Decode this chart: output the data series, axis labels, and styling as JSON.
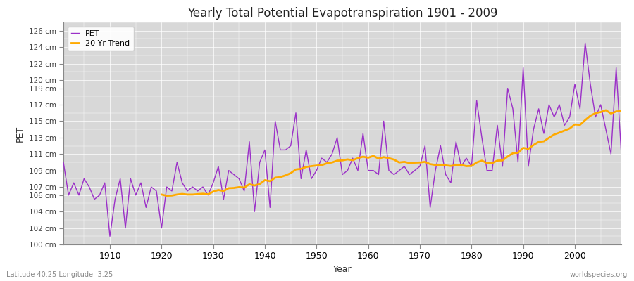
{
  "title": "Yearly Total Potential Evapotranspiration 1901 - 2009",
  "xlabel": "Year",
  "ylabel": "PET",
  "footnote_left": "Latitude 40.25 Longitude -3.25",
  "footnote_right": "worldspecies.org",
  "pet_color": "#9b30c8",
  "trend_color": "#ffaa00",
  "figure_bg_color": "#ffffff",
  "plot_bg_color": "#d8d8d8",
  "ylim": [
    100,
    127
  ],
  "xlim": [
    1901,
    2009
  ],
  "ytick_labels": [
    "100 cm",
    "102 cm",
    "104 cm",
    "106 cm",
    "107 cm",
    "109 cm",
    "111 cm",
    "113 cm",
    "115 cm",
    "117 cm",
    "119 cm",
    "120 cm",
    "122 cm",
    "124 cm",
    "126 cm"
  ],
  "ytick_values": [
    100,
    102,
    104,
    106,
    107,
    109,
    111,
    113,
    115,
    117,
    119,
    120,
    122,
    124,
    126
  ],
  "xtick_values": [
    1910,
    1920,
    1930,
    1940,
    1950,
    1960,
    1970,
    1980,
    1990,
    2000
  ],
  "years": [
    1901,
    1902,
    1903,
    1904,
    1905,
    1906,
    1907,
    1908,
    1909,
    1910,
    1911,
    1912,
    1913,
    1914,
    1915,
    1916,
    1917,
    1918,
    1919,
    1920,
    1921,
    1922,
    1923,
    1924,
    1925,
    1926,
    1927,
    1928,
    1929,
    1930,
    1931,
    1932,
    1933,
    1934,
    1935,
    1936,
    1937,
    1938,
    1939,
    1940,
    1941,
    1942,
    1943,
    1944,
    1945,
    1946,
    1947,
    1948,
    1949,
    1950,
    1951,
    1952,
    1953,
    1954,
    1955,
    1956,
    1957,
    1958,
    1959,
    1960,
    1961,
    1962,
    1963,
    1964,
    1965,
    1966,
    1967,
    1968,
    1969,
    1970,
    1971,
    1972,
    1973,
    1974,
    1975,
    1976,
    1977,
    1978,
    1979,
    1980,
    1981,
    1982,
    1983,
    1984,
    1985,
    1986,
    1987,
    1988,
    1989,
    1990,
    1991,
    1992,
    1993,
    1994,
    1995,
    1996,
    1997,
    1998,
    1999,
    2000,
    2001,
    2002,
    2003,
    2004,
    2005,
    2006,
    2007,
    2008,
    2009
  ],
  "pet_values": [
    110.0,
    106.0,
    107.5,
    106.0,
    108.0,
    107.0,
    105.5,
    106.0,
    107.5,
    101.0,
    105.5,
    108.0,
    102.0,
    108.0,
    106.0,
    107.5,
    104.5,
    107.0,
    106.5,
    102.0,
    107.0,
    106.5,
    110.0,
    107.5,
    106.5,
    107.0,
    106.5,
    107.0,
    106.0,
    107.5,
    109.5,
    105.5,
    109.0,
    108.5,
    108.0,
    106.5,
    112.5,
    104.0,
    110.0,
    111.5,
    104.5,
    115.0,
    111.5,
    111.5,
    112.0,
    116.0,
    108.0,
    111.5,
    108.0,
    109.0,
    110.5,
    110.0,
    111.0,
    113.0,
    108.5,
    109.0,
    110.5,
    109.0,
    113.5,
    109.0,
    109.0,
    108.5,
    115.0,
    109.0,
    108.5,
    109.0,
    109.5,
    108.5,
    109.0,
    109.5,
    112.0,
    104.5,
    109.0,
    112.0,
    108.5,
    107.5,
    112.5,
    109.5,
    110.5,
    109.5,
    117.5,
    113.0,
    109.0,
    109.0,
    114.5,
    109.5,
    119.0,
    116.5,
    110.0,
    121.5,
    109.5,
    114.0,
    116.5,
    113.5,
    117.0,
    115.5,
    117.0,
    114.5,
    115.5,
    119.5,
    116.5,
    124.5,
    119.5,
    115.5,
    117.0,
    114.0,
    111.0,
    121.5,
    111.0
  ]
}
